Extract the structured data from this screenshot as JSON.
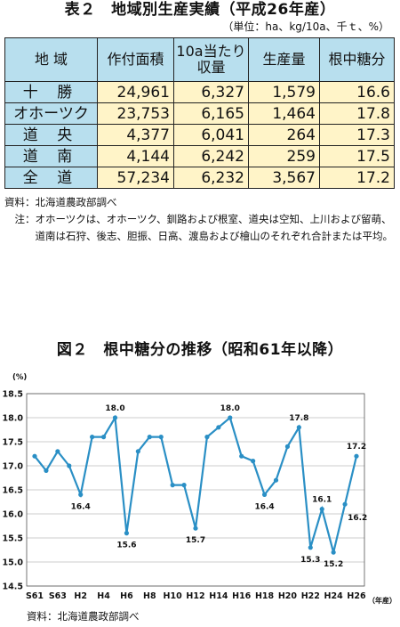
{
  "table": {
    "title": "表２　地域別生産実績（平成26年産）",
    "unit_note": "（単位：ha、kg/10a、千ｔ、%）",
    "headers": [
      "地 域",
      "作付面積",
      "10a当たり",
      "収量",
      "生産量",
      "根中糖分"
    ],
    "rows": [
      {
        "region": "十 勝",
        "area": "24,961",
        "yield": "6,327",
        "production": "1,579",
        "sugar": "16.6"
      },
      {
        "region": "オホーツク",
        "area": "23,753",
        "yield": "6,165",
        "production": "1,464",
        "sugar": "17.8"
      },
      {
        "region": "道 央",
        "area": "4,377",
        "yield": "6,041",
        "production": "264",
        "sugar": "17.3"
      },
      {
        "region": "道 南",
        "area": "4,144",
        "yield": "6,242",
        "production": "259",
        "sugar": "17.5"
      },
      {
        "region": "全 道",
        "area": "57,234",
        "yield": "6,232",
        "production": "3,567",
        "sugar": "17.2"
      }
    ],
    "source": "資料：北海道農政部調べ",
    "note_head": "　注：",
    "note_text": "オホーツクは、オホーツク、釧路および根室、道央は空知、上川および留萌、道南は石狩、後志、胆振、日高、渡島および檜山のそれぞれ合計または平均。"
  },
  "chart_title": "図２　根中糖分の推移（昭和61年以降）",
  "chart_source": "資料：北海道農政部調べ",
  "chart_data": {
    "type": "line",
    "title": "図２　根中糖分の推移（昭和61年以降）",
    "ylabel": "(%)",
    "xlabel": "（年産）",
    "ylim": [
      14.5,
      18.5
    ],
    "yticks": [
      "14.5",
      "15.0",
      "15.5",
      "16.0",
      "16.5",
      "17.0",
      "17.5",
      "18.0",
      "18.5"
    ],
    "x": [
      "S61",
      "S62",
      "S63",
      "H1",
      "H2",
      "H3",
      "H4",
      "H5",
      "H6",
      "H7",
      "H8",
      "H9",
      "H10",
      "H11",
      "H12",
      "H13",
      "H14",
      "H15",
      "H16",
      "H17",
      "H18",
      "H19",
      "H20",
      "H21",
      "H22",
      "H23",
      "H24",
      "H25",
      "H26"
    ],
    "xtick_labels": [
      "S61",
      "S63",
      "H2",
      "H4",
      "H6",
      "H8",
      "H10",
      "H12",
      "H14",
      "H16",
      "H18",
      "H20",
      "H22",
      "H24",
      "H26"
    ],
    "values": [
      17.2,
      16.9,
      17.3,
      17.0,
      16.4,
      17.6,
      17.6,
      18.0,
      15.6,
      17.3,
      17.6,
      17.6,
      16.6,
      16.6,
      15.7,
      17.6,
      17.8,
      18.0,
      17.2,
      17.1,
      16.4,
      16.7,
      17.4,
      17.8,
      15.3,
      16.1,
      15.2,
      16.2,
      17.2
    ],
    "data_labels": [
      {
        "index": 4,
        "text": "16.4",
        "pos": "below"
      },
      {
        "index": 7,
        "text": "18.0",
        "pos": "above"
      },
      {
        "index": 8,
        "text": "15.6",
        "pos": "below"
      },
      {
        "index": 14,
        "text": "15.7",
        "pos": "below"
      },
      {
        "index": 17,
        "text": "18.0",
        "pos": "above"
      },
      {
        "index": 20,
        "text": "16.4",
        "pos": "below"
      },
      {
        "index": 23,
        "text": "17.8",
        "pos": "above"
      },
      {
        "index": 24,
        "text": "15.3",
        "pos": "below"
      },
      {
        "index": 25,
        "text": "16.1",
        "pos": "above"
      },
      {
        "index": 26,
        "text": "15.2",
        "pos": "below"
      },
      {
        "index": 27,
        "text": "16.2",
        "pos": "right"
      },
      {
        "index": 28,
        "text": "17.2",
        "pos": "above"
      }
    ],
    "grid": true,
    "line_color": "#2a8fc5"
  }
}
